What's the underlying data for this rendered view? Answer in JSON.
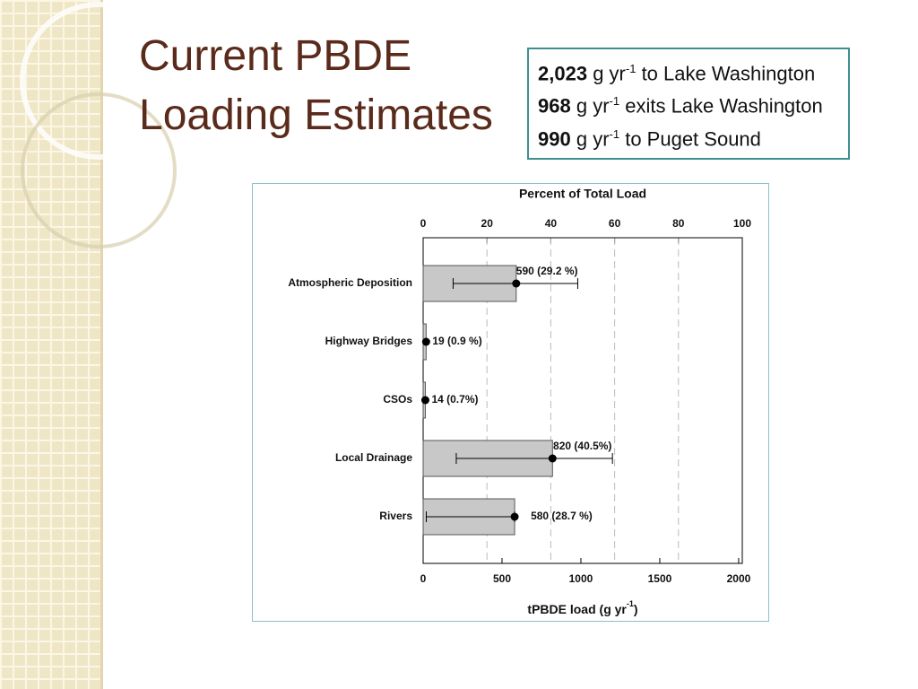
{
  "header": {
    "title_lines": [
      "Current PBDE",
      "Loading Estimates"
    ]
  },
  "info_box": {
    "lines": [
      {
        "amount": "2,023",
        "unit": "g yr",
        "sup": "-1",
        "rest": "to Lake Washington"
      },
      {
        "amount": "968",
        "unit": "g yr",
        "sup": "-1",
        "rest": "exits Lake Washington"
      },
      {
        "amount": "990",
        "unit": "g yr",
        "sup": "-1",
        "rest": "to Puget Sound"
      }
    ]
  },
  "chart_data": {
    "type": "hbar",
    "top_axis_title": "Percent of Total Load",
    "xlabel": {
      "text": "tPBDE load (g yr",
      "sup": "-1",
      "end": ")"
    },
    "categories": [
      "Atmospheric Deposition",
      "Highway Bridges",
      "CSOs",
      "Local Drainage",
      "Rivers"
    ],
    "values": [
      590,
      19,
      14,
      820,
      580
    ],
    "value_labels": [
      "590 (29.2 %)",
      "19 (0.9 %)",
      "14 (0.7%)",
      "820 (40.5%)",
      "580 (28.7 %)"
    ],
    "error_low": [
      190,
      null,
      null,
      210,
      20
    ],
    "error_high": [
      980,
      null,
      null,
      1200,
      580
    ],
    "color": "#c8c8c8",
    "xlim": [
      0,
      2023
    ],
    "xticks": [
      0,
      500,
      1000,
      1500,
      2000
    ],
    "x2lim": [
      0,
      100
    ],
    "x2ticks": [
      0,
      20,
      40,
      60,
      80,
      100
    ],
    "grid": true
  }
}
